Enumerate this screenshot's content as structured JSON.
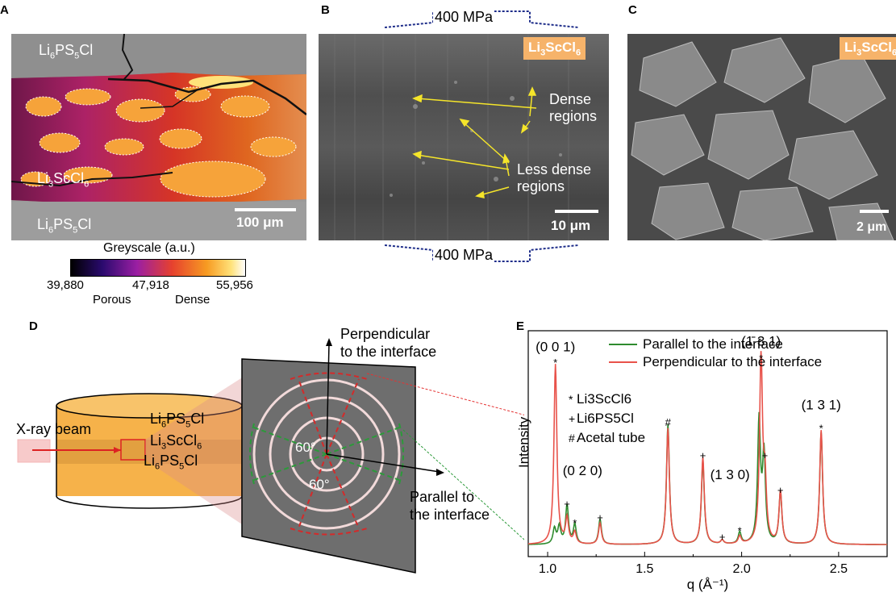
{
  "panels": {
    "a": "A",
    "b": "B",
    "c": "C",
    "d": "D",
    "e": "E"
  },
  "panel_a": {
    "top_label": "Li6PS5Cl",
    "mid_label": "Li3ScCl6",
    "bottom_label": "Li6PS5Cl",
    "scalebar": "100 μm",
    "colorbar_title": "Greyscale (a.u.)",
    "colorbar_ticks": [
      "39,880",
      "47,918",
      "55,956"
    ],
    "colorbar_low": "Porous",
    "colorbar_high": "Dense"
  },
  "panel_b": {
    "pressure_top": "400 MPa",
    "pressure_bottom": "400 MPa",
    "tag": "Li3ScCl6",
    "dense_label": "Dense\nregions",
    "less_dense_label": "Less dense\nregions",
    "scalebar": "10 μm"
  },
  "panel_c": {
    "tag": "Li3ScCl6",
    "scalebar": "2 μm"
  },
  "panel_d": {
    "beam_label": "X-ray beam",
    "layer_top": "Li6PS5Cl",
    "layer_mid": "Li3ScCl6",
    "layer_bottom": "Li6PS5Cl",
    "perp_label": "Perpendicular\nto the interface",
    "par_label": "Parallel to\nthe interface",
    "angle1": "60°",
    "angle2": "60°"
  },
  "chart_data": {
    "type": "line",
    "xlabel": "q (Å⁻¹)",
    "ylabel": "Intensity",
    "xlim": [
      0.9,
      2.75
    ],
    "xticks": [
      "1.0",
      "1.5",
      "2.0",
      "2.5"
    ],
    "legend": [
      "Parallel to the interface",
      "Perpendicular to the interface"
    ],
    "legend_position": "top-right",
    "series": [
      {
        "name": "Parallel to the interface",
        "color": "#2e8b2e",
        "peaks": [
          [
            1.035,
            0.08
          ],
          [
            1.06,
            0.09
          ],
          [
            1.1,
            0.2
          ],
          [
            1.14,
            0.1
          ],
          [
            1.27,
            0.13
          ],
          [
            1.62,
            0.62
          ],
          [
            1.8,
            0.43
          ],
          [
            1.9,
            0.02
          ],
          [
            1.99,
            0.06
          ],
          [
            2.09,
            0.63
          ],
          [
            2.115,
            0.45
          ],
          [
            2.2,
            0.27
          ],
          [
            2.41,
            0.58
          ]
        ]
      },
      {
        "name": "Perpendicular to the interface",
        "color": "#e8524a",
        "peaks": [
          [
            1.04,
            0.93
          ],
          [
            1.1,
            0.13
          ],
          [
            1.14,
            0.06
          ],
          [
            1.27,
            0.11
          ],
          [
            1.62,
            0.6
          ],
          [
            1.8,
            0.45
          ],
          [
            1.9,
            0.02
          ],
          [
            1.99,
            0.04
          ],
          [
            2.1,
            0.95
          ],
          [
            2.12,
            0.3
          ],
          [
            2.2,
            0.27
          ],
          [
            2.41,
            0.59
          ]
        ]
      }
    ],
    "annotations": {
      "p001": "(0 0 1)",
      "p020": "(0 2 0)",
      "p130": "(1 3 0)",
      "pm131": "(1̄ 3 1)",
      "p131": "(1 3 1)",
      "key_star": "Li3ScCl6",
      "key_plus": "Li6PS5Cl",
      "key_hash": "Acetal tube"
    }
  }
}
